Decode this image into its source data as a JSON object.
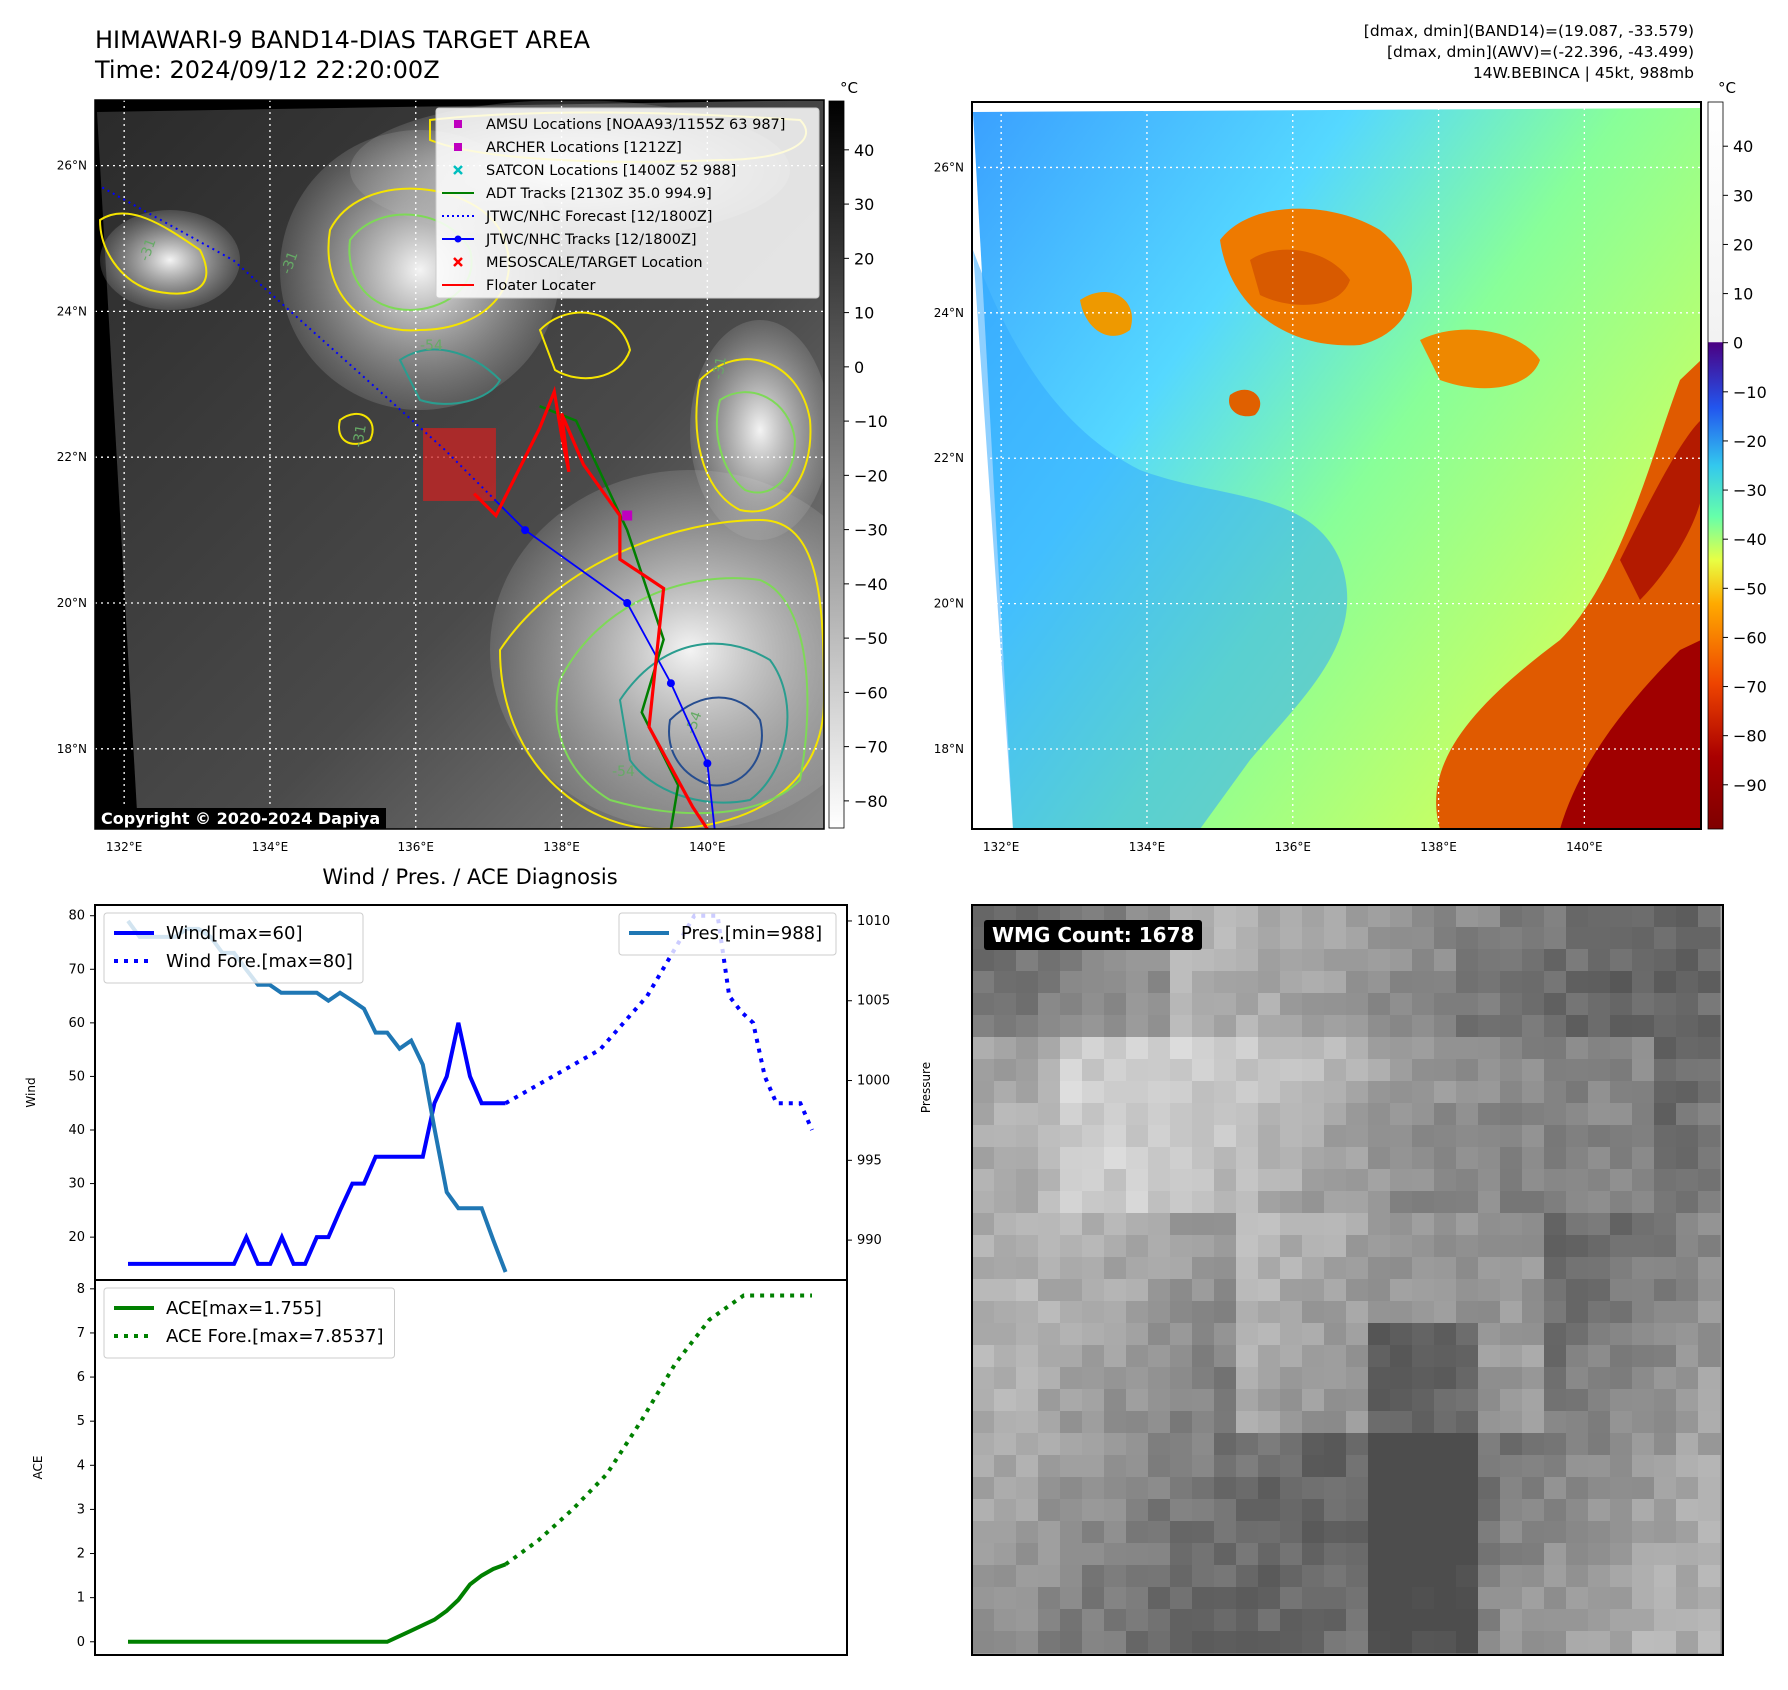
{
  "header": {
    "title_line1": "HIMAWARI-9 BAND14-DIAS TARGET AREA",
    "title_line2": "Time: 2024/09/12 22:20:00Z",
    "info_line1": "[dmax, dmin](BAND14)=(19.087, -33.579)",
    "info_line2": "[dmax, dmin](AWV)=(-22.396, -43.499)",
    "info_line3": "14W.BEBINCA | 45kt, 988mb"
  },
  "copyright": "Copyright © 2020-2024 Dapiya",
  "wmg_count": "WMG Count: 1678",
  "map": {
    "lat_ticks": [
      "26°N",
      "24°N",
      "22°N",
      "20°N",
      "18°N"
    ],
    "lat_values": [
      26,
      24,
      22,
      20,
      18
    ],
    "lon_ticks": [
      "132°E",
      "134°E",
      "136°E",
      "138°E",
      "140°E"
    ],
    "lon_values": [
      132,
      134,
      136,
      138,
      140
    ],
    "lon_range": [
      131.6,
      141.6
    ],
    "lat_range": [
      16.9,
      26.9
    ],
    "contour_labels": [
      "-31",
      "-54",
      "-31",
      "-31",
      "-54",
      "-31",
      "-54"
    ]
  },
  "colorbar_left": {
    "unit": "°C",
    "ticks": [
      "40",
      "30",
      "20",
      "10",
      "0",
      "−10",
      "−20",
      "−30",
      "−40",
      "−50",
      "−60",
      "−70",
      "−80"
    ],
    "tick_values": [
      40,
      30,
      20,
      10,
      0,
      -10,
      -20,
      -30,
      -40,
      -50,
      -60,
      -70,
      -80
    ],
    "range": [
      -85,
      49
    ]
  },
  "colorbar_right": {
    "unit": "°C",
    "ticks": [
      "40",
      "30",
      "20",
      "10",
      "0",
      "−10",
      "−20",
      "−30",
      "−40",
      "−50",
      "−60",
      "−70",
      "−80",
      "−90"
    ],
    "tick_values": [
      40,
      30,
      20,
      10,
      0,
      -10,
      -20,
      -30,
      -40,
      -50,
      -60,
      -70,
      -80,
      -90
    ],
    "range": [
      -99,
      49
    ]
  },
  "legend": [
    {
      "label": "AMSU Locations [NOAA93/1155Z 63 987]",
      "marker": "square",
      "color": "#bf00bf"
    },
    {
      "label": "ARCHER Locations [1212Z]",
      "marker": "square",
      "color": "#bf00bf"
    },
    {
      "label": "SATCON Locations [1400Z 52 988]",
      "marker": "x",
      "color": "#00bfbf"
    },
    {
      "label": "ADT Tracks [2130Z 35.0 994.9]",
      "marker": "line",
      "color": "#007f00"
    },
    {
      "label": "JTWC/NHC Forecast [12/1800Z]",
      "marker": "dotted",
      "color": "#0000ff"
    },
    {
      "label": "JTWC/NHC Tracks [12/1800Z]",
      "marker": "line-dot",
      "color": "#0000ff"
    },
    {
      "label": "MESOSCALE/TARGET Location",
      "marker": "x",
      "color": "#ff0000"
    },
    {
      "label": "Floater Locater",
      "marker": "line",
      "color": "#ff0000"
    }
  ],
  "chart_data": [
    {
      "type": "line",
      "title": "Wind / Pres. / ACE Diagnosis",
      "ylabel": "Wind",
      "y2label": "Pressure",
      "ylim": [
        12,
        82
      ],
      "y2lim": [
        987.5,
        1011
      ],
      "xlim": [
        0,
        1
      ],
      "yticks": [
        20,
        30,
        40,
        50,
        60,
        70,
        80
      ],
      "y2ticks": [
        990,
        995,
        1000,
        1005,
        1010
      ],
      "series": [
        {
          "name": "Wind[max=60]",
          "style": "solid",
          "color": "#0000ff",
          "axis": "left",
          "x": [
            0,
            0.155,
            0.173,
            0.19,
            0.208,
            0.225,
            0.242,
            0.259,
            0.276,
            0.293,
            0.31,
            0.328,
            0.345,
            0.362,
            0.379,
            0.414,
            0.431,
            0.448,
            0.466,
            0.483,
            0.5,
            0.517,
            0.534,
            0.552
          ],
          "values": [
            15,
            15,
            20,
            15,
            15,
            20,
            15,
            15,
            20,
            20,
            25,
            30,
            30,
            35,
            35,
            35,
            35,
            45,
            50,
            60,
            50,
            45,
            45,
            45
          ]
        },
        {
          "name": "Wind Fore.[max=80]",
          "style": "dotted",
          "color": "#0000ff",
          "axis": "left",
          "x": [
            0.552,
            0.621,
            0.69,
            0.759,
            0.828,
            0.845,
            0.862,
            0.879,
            0.897,
            0.914,
            0.931,
            0.948,
            0.966,
            0.983,
            1.0
          ],
          "values": [
            45,
            50,
            55,
            65,
            80,
            80,
            80,
            65,
            62,
            60,
            50,
            45,
            45,
            45,
            40
          ]
        },
        {
          "name": "Pres.[min=988]",
          "style": "solid",
          "color": "#1f77b4",
          "axis": "right",
          "x": [
            0,
            0.017,
            0.034,
            0.069,
            0.086,
            0.103,
            0.121,
            0.138,
            0.155,
            0.172,
            0.19,
            0.207,
            0.224,
            0.241,
            0.259,
            0.276,
            0.293,
            0.31,
            0.328,
            0.345,
            0.362,
            0.379,
            0.397,
            0.414,
            0.431,
            0.448,
            0.466,
            0.483,
            0.5,
            0.517,
            0.534,
            0.552
          ],
          "values": [
            1010,
            1009,
            1009,
            1009,
            1009.5,
            1009.5,
            1009,
            1008,
            1008,
            1007,
            1006,
            1006,
            1005.5,
            1005.5,
            1005.5,
            1005.5,
            1005,
            1005.5,
            1005,
            1004.5,
            1003,
            1003,
            1002,
            1002.5,
            1001,
            997,
            993,
            992,
            992,
            992,
            990,
            988
          ]
        }
      ]
    },
    {
      "type": "line",
      "ylabel": "ACE",
      "ylim": [
        -0.3,
        8.2
      ],
      "xlim": [
        0,
        1
      ],
      "yticks": [
        0,
        1,
        2,
        3,
        4,
        5,
        6,
        7,
        8
      ],
      "series": [
        {
          "name": "ACE[max=1.755]",
          "style": "solid",
          "color": "#008000",
          "x": [
            0,
            0.379,
            0.414,
            0.448,
            0.466,
            0.483,
            0.5,
            0.517,
            0.534,
            0.552
          ],
          "values": [
            0,
            0,
            0.25,
            0.5,
            0.7,
            0.95,
            1.3,
            1.5,
            1.65,
            1.755
          ]
        },
        {
          "name": "ACE Fore.[max=7.8537]",
          "style": "dotted",
          "color": "#008000",
          "x": [
            0.552,
            0.6,
            0.65,
            0.7,
            0.75,
            0.8,
            0.85,
            0.9,
            0.95,
            1.0
          ],
          "values": [
            1.755,
            2.3,
            3.0,
            3.8,
            5.0,
            6.3,
            7.3,
            7.85,
            7.85,
            7.85
          ]
        }
      ]
    }
  ],
  "tracks": {
    "jtwc_forecast": [
      [
        131.7,
        25.7
      ],
      [
        133.5,
        24.7
      ],
      [
        135.4,
        23.0
      ],
      [
        136.4,
        22.1
      ],
      [
        137.1,
        21.4
      ]
    ],
    "jtwc_track": [
      [
        137.1,
        21.4
      ],
      [
        137.5,
        21.0
      ],
      [
        138.9,
        20.0
      ],
      [
        139.5,
        18.9
      ],
      [
        140.0,
        17.8
      ],
      [
        140.1,
        16.9
      ]
    ],
    "adt_track": [
      [
        137.7,
        22.7
      ],
      [
        138.2,
        22.5
      ],
      [
        138.9,
        21.0
      ],
      [
        139.4,
        19.5
      ],
      [
        139.1,
        18.5
      ],
      [
        139.6,
        17.5
      ],
      [
        139.5,
        16.9
      ]
    ],
    "floater_path": [
      [
        136.8,
        21.5
      ],
      [
        137.1,
        21.2
      ],
      [
        137.7,
        22.4
      ],
      [
        137.9,
        22.9
      ],
      [
        138.0,
        22.3
      ],
      [
        138.1,
        21.8
      ],
      [
        138.0,
        22.6
      ],
      [
        138.3,
        21.9
      ],
      [
        138.8,
        21.2
      ],
      [
        138.8,
        20.6
      ],
      [
        139.4,
        20.2
      ],
      [
        139.2,
        18.3
      ],
      [
        139.8,
        17.2
      ],
      [
        140.0,
        16.9
      ]
    ],
    "archer_point": [
      138.9,
      21.2
    ],
    "jtwc_points": [
      [
        137.5,
        21.0
      ],
      [
        138.9,
        20.0
      ],
      [
        139.5,
        18.9
      ],
      [
        140.0,
        17.8
      ]
    ],
    "target_box": [
      136.1,
      21.4,
      137.1,
      22.4
    ]
  }
}
